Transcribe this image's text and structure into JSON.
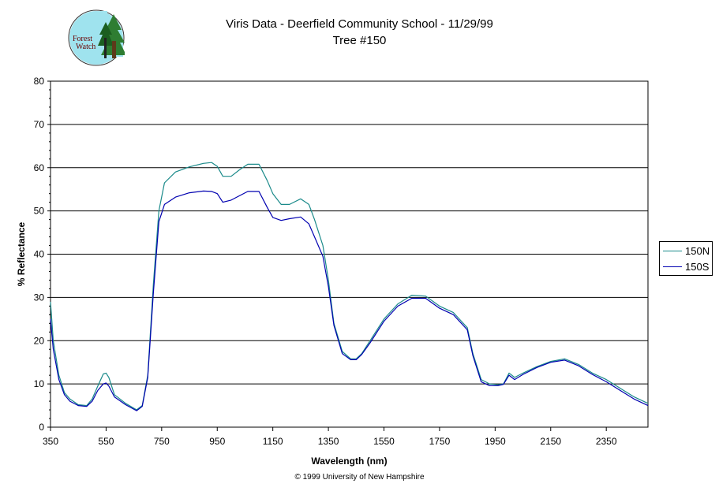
{
  "logo": {
    "text_line1": "Forest",
    "text_line2": "Watch"
  },
  "chart_data": {
    "type": "line",
    "title": "Viris Data - Deerfield Community School - 11/29/99",
    "subtitle": "Tree #150",
    "xlabel": "Wavelength (nm)",
    "ylabel": "% Reflectance",
    "xlim": [
      350,
      2500
    ],
    "ylim": [
      0,
      80
    ],
    "xticks": [
      350,
      550,
      750,
      950,
      1150,
      1350,
      1550,
      1750,
      1950,
      2150,
      2350
    ],
    "yticks": [
      0,
      10,
      20,
      30,
      40,
      50,
      60,
      70,
      80
    ],
    "grid": "horizontal",
    "legend_position": "right",
    "series": [
      {
        "name": "150N",
        "color": "#1a8a8a",
        "x": [
          350,
          360,
          380,
          400,
          420,
          450,
          480,
          500,
          520,
          540,
          550,
          560,
          580,
          620,
          660,
          680,
          700,
          720,
          740,
          760,
          800,
          850,
          900,
          930,
          950,
          970,
          1000,
          1030,
          1060,
          1100,
          1130,
          1150,
          1180,
          1210,
          1250,
          1280,
          1300,
          1330,
          1350,
          1370,
          1400,
          1430,
          1450,
          1470,
          1500,
          1550,
          1600,
          1650,
          1700,
          1750,
          1800,
          1850,
          1870,
          1900,
          1930,
          1960,
          1980,
          2000,
          2020,
          2050,
          2100,
          2150,
          2200,
          2250,
          2300,
          2350,
          2400,
          2450,
          2500
        ],
        "values": [
          29.0,
          20.0,
          12.0,
          8.0,
          6.5,
          5.2,
          5.0,
          6.5,
          9.5,
          12.3,
          12.5,
          11.5,
          7.5,
          5.5,
          4.0,
          5.0,
          12.0,
          33.0,
          50.0,
          56.5,
          59.0,
          60.2,
          61.0,
          61.2,
          60.3,
          58.0,
          58.0,
          59.5,
          60.8,
          60.8,
          57.0,
          54.0,
          51.5,
          51.5,
          52.8,
          51.5,
          48.0,
          42.0,
          34.0,
          24.0,
          17.5,
          15.8,
          15.8,
          17.0,
          20.0,
          25.0,
          28.5,
          30.5,
          30.3,
          28.0,
          26.5,
          23.0,
          17.0,
          11.0,
          10.0,
          9.8,
          10.0,
          12.5,
          11.5,
          12.5,
          14.0,
          15.2,
          15.8,
          14.5,
          12.5,
          11.0,
          9.0,
          7.0,
          5.5
        ]
      },
      {
        "name": "150S",
        "color": "#0000b0",
        "x": [
          350,
          360,
          380,
          400,
          420,
          450,
          480,
          500,
          520,
          540,
          550,
          560,
          580,
          620,
          660,
          680,
          700,
          720,
          740,
          760,
          800,
          850,
          900,
          930,
          950,
          970,
          1000,
          1030,
          1060,
          1100,
          1130,
          1150,
          1180,
          1210,
          1250,
          1280,
          1300,
          1330,
          1350,
          1370,
          1400,
          1430,
          1450,
          1470,
          1500,
          1550,
          1600,
          1650,
          1700,
          1750,
          1800,
          1850,
          1870,
          1900,
          1930,
          1960,
          1980,
          2000,
          2020,
          2050,
          2100,
          2150,
          2200,
          2250,
          2300,
          2350,
          2400,
          2450,
          2500
        ],
        "values": [
          25.0,
          18.0,
          11.0,
          7.5,
          6.0,
          5.0,
          4.8,
          6.0,
          8.5,
          10.0,
          10.2,
          9.5,
          7.0,
          5.2,
          3.8,
          4.8,
          11.5,
          31.0,
          47.5,
          51.5,
          53.2,
          54.2,
          54.6,
          54.5,
          54.0,
          52.0,
          52.5,
          53.5,
          54.5,
          54.5,
          50.8,
          48.5,
          47.8,
          48.2,
          48.6,
          47.0,
          44.0,
          39.5,
          32.5,
          23.5,
          17.0,
          15.6,
          15.6,
          16.8,
          19.5,
          24.5,
          28.0,
          29.8,
          29.8,
          27.5,
          26.0,
          22.5,
          16.5,
          10.5,
          9.6,
          9.6,
          9.9,
          12.0,
          11.0,
          12.2,
          13.8,
          15.0,
          15.5,
          14.2,
          12.2,
          10.5,
          8.5,
          6.5,
          5.0
        ]
      }
    ]
  },
  "copyright": "© 1999 University of New Hampshire"
}
